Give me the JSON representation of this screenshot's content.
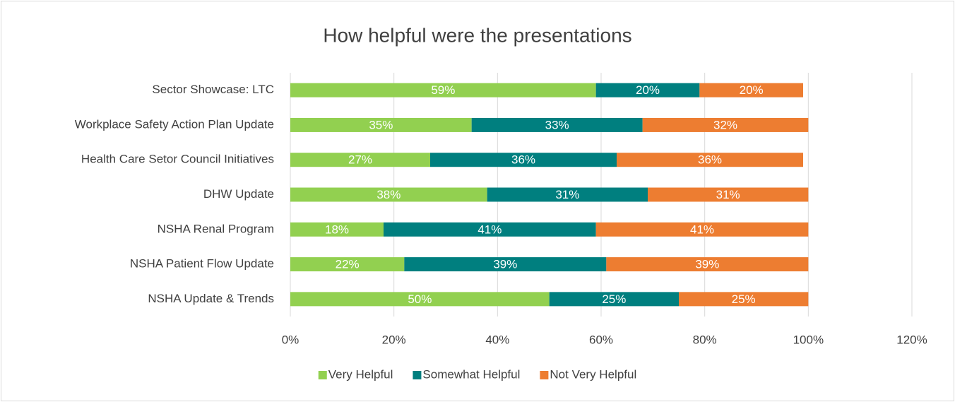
{
  "chart_data": {
    "type": "stacked-barh",
    "title": "How helpful were the presentations",
    "categories": [
      "Sector Showcase: LTC",
      "Workplace Safety Action Plan Update",
      "Health Care Setor Council Initiatives",
      "DHW Update",
      "NSHA Renal Program",
      "NSHA Patient Flow Update",
      "NSHA Update & Trends"
    ],
    "series": [
      {
        "name": "Very Helpful",
        "color": "#92d050",
        "values": [
          59,
          35,
          27,
          38,
          18,
          22,
          50
        ],
        "value_labels": [
          "59%",
          "35%",
          "27%",
          "38%",
          "18%",
          "22%",
          "50%"
        ]
      },
      {
        "name": "Somewhat Helpful",
        "color": "#007f7f",
        "values": [
          20,
          33,
          36,
          31,
          41,
          39,
          25
        ],
        "value_labels": [
          "20%",
          "33%",
          "36%",
          "31%",
          "41%",
          "39%",
          "25%"
        ]
      },
      {
        "name": "Not Very Helpful",
        "color": "#ed7d31",
        "values": [
          20,
          32,
          36,
          31,
          41,
          39,
          25
        ],
        "value_labels": [
          "20%",
          "32%",
          "36%",
          "31%",
          "41%",
          "39%",
          "25%"
        ]
      }
    ],
    "xlim": [
      0,
      120
    ],
    "xticks": [
      {
        "value": 0,
        "label": "0%"
      },
      {
        "value": 20,
        "label": "20%"
      },
      {
        "value": 40,
        "label": "40%"
      },
      {
        "value": 60,
        "label": "60%"
      },
      {
        "value": 80,
        "label": "80%"
      },
      {
        "value": 100,
        "label": "100%"
      },
      {
        "value": 120,
        "label": "120%"
      }
    ],
    "grid": true,
    "legend": "bottom"
  }
}
